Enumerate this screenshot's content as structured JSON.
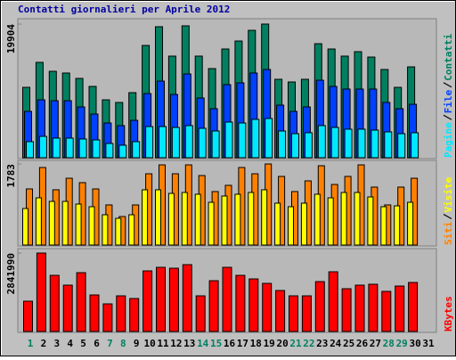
{
  "chart_data": [
    {
      "type": "bar",
      "title": "Contatti giornalieri per Aprile 2012",
      "ylim": [
        0,
        19904
      ],
      "yticks": [
        19904
      ],
      "series": [
        {
          "name": "Pagine",
          "color": "#00e8ff",
          "values": [
            2390,
            3180,
            2920,
            2920,
            2790,
            2650,
            2120,
            1860,
            2390,
            4640,
            4640,
            4510,
            4780,
            4380,
            3980,
            5310,
            5170,
            5710,
            5840,
            3980,
            3580,
            3720,
            4780,
            4510,
            4250,
            4250,
            4110,
            3850,
            3580,
            3720,
            null
          ]
        },
        {
          "name": "File",
          "color": "#0040ff",
          "values": [
            6900,
            8620,
            8490,
            8490,
            7560,
            6500,
            5170,
            4780,
            5570,
            9550,
            11410,
            9420,
            12470,
            8890,
            7300,
            10880,
            11150,
            12610,
            13140,
            7830,
            6900,
            7560,
            11540,
            10620,
            10220,
            10220,
            10220,
            8230,
            7300,
            7960,
            null
          ]
        },
        {
          "name": "Contatti",
          "color": "#008060",
          "values": [
            10480,
            14200,
            12870,
            12610,
            11810,
            10620,
            8620,
            8230,
            9690,
            16720,
            19510,
            15130,
            19640,
            15130,
            13270,
            16190,
            17380,
            18970,
            19904,
            11680,
            11280,
            11680,
            16980,
            16190,
            15130,
            15790,
            14990,
            13140,
            10480,
            13530,
            null
          ]
        }
      ]
    },
    {
      "type": "bar",
      "ylim": [
        0,
        1783
      ],
      "yticks": [
        1783
      ],
      "series": [
        {
          "name": "Siti",
          "color": "#ff8000",
          "values": [
            1234,
            1705,
            1215,
            1469,
            1372,
            1234,
            882,
            627,
            882,
            1567,
            1763,
            1567,
            1763,
            1528,
            1176,
            1313,
            1705,
            1567,
            1783,
            1509,
            1176,
            1411,
            1744,
            1332,
            1509,
            1763,
            1274,
            882,
            1274,
            1469,
            null
          ]
        },
        {
          "name": "Visite",
          "color": "#ffff00",
          "values": [
            803,
            1038,
            960,
            960,
            901,
            843,
            666,
            588,
            666,
            1215,
            1215,
            1136,
            1156,
            1117,
            940,
            1078,
            1117,
            1156,
            1215,
            921,
            843,
            921,
            1117,
            1038,
            1156,
            1156,
            1058,
            843,
            862,
            940,
            null
          ]
        }
      ]
    },
    {
      "type": "bar",
      "ylim": [
        0,
        2841990
      ],
      "yticks": [
        2841990
      ],
      "categories": [
        1,
        2,
        3,
        4,
        5,
        6,
        7,
        8,
        9,
        10,
        11,
        12,
        13,
        14,
        15,
        16,
        17,
        18,
        19,
        20,
        21,
        22,
        23,
        24,
        25,
        26,
        27,
        28,
        29,
        30,
        31
      ],
      "category_colors": [
        "#008060",
        "#000000",
        "#000000",
        "#000000",
        "#000000",
        "#000000",
        "#008060",
        "#008060",
        "#000000",
        "#000000",
        "#000000",
        "#000000",
        "#000000",
        "#008060",
        "#008060",
        "#000000",
        "#000000",
        "#000000",
        "#000000",
        "#000000",
        "#008060",
        "#008060",
        "#000000",
        "#000000",
        "#000000",
        "#000000",
        "#000000",
        "#008060",
        "#008060",
        "#000000",
        "#000000"
      ],
      "series": [
        {
          "name": "KBytes",
          "color": "#ff0000",
          "values": [
            1098000,
            2841990,
            2034600,
            1679300,
            2131500,
            1324100,
            1001100,
            1291800,
            1194900,
            2196100,
            2325200,
            2292900,
            2422100,
            1291800,
            1840800,
            2325200,
            2034600,
            1905400,
            1743900,
            1485600,
            1291800,
            1291800,
            1808500,
            2163800,
            1550200,
            1679300,
            1711600,
            1453300,
            1647000,
            1776200,
            null
          ]
        }
      ]
    }
  ]
}
